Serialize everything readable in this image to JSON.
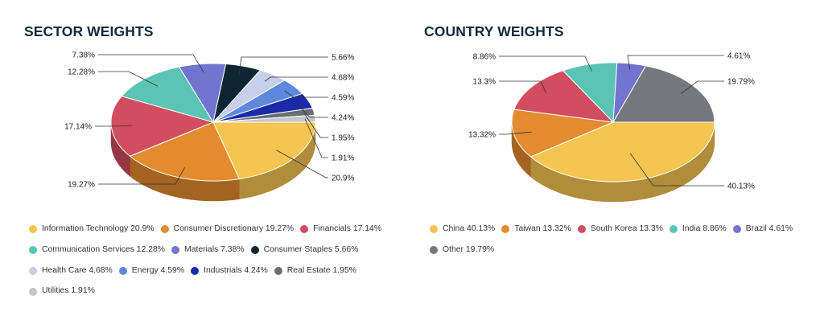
{
  "chart_data": [
    {
      "type": "pie",
      "title": "SECTOR WEIGHTS",
      "slices": [
        {
          "name": "Information Technology",
          "value": 20.9,
          "label": "20.9%",
          "legend": "Information Technology 20.9%",
          "color": "#f5c451"
        },
        {
          "name": "Consumer Discretionary",
          "value": 19.27,
          "label": "19.27%",
          "legend": "Consumer Discretionary 19.27%",
          "color": "#e38b2e"
        },
        {
          "name": "Financials",
          "value": 17.14,
          "label": "17.14%",
          "legend": "Financials 17.14%",
          "color": "#d24d5f"
        },
        {
          "name": "Communication Services",
          "value": 12.28,
          "label": "12.28%",
          "legend": "Communication Services 12.28%",
          "color": "#5cc4b4"
        },
        {
          "name": "Materials",
          "value": 7.38,
          "label": "7.38%",
          "legend": "Materials 7.38%",
          "color": "#7175cf"
        },
        {
          "name": "Consumer Staples",
          "value": 5.66,
          "label": "5.66%",
          "legend": "Consumer Staples 5.66%",
          "color": "#0c2733"
        },
        {
          "name": "Health Care",
          "value": 4.68,
          "label": "4.68%",
          "legend": "Health Care 4.68%",
          "color": "#c5cfe9"
        },
        {
          "name": "Energy",
          "value": 4.59,
          "label": "4.59%",
          "legend": "Energy 4.59%",
          "color": "#5d88dc"
        },
        {
          "name": "Industrials",
          "value": 4.24,
          "label": "4.24%",
          "legend": "Industrials 4.24%",
          "color": "#1a2aa8"
        },
        {
          "name": "Real Estate",
          "value": 1.95,
          "label": "1.95%",
          "legend": "Real Estate 1.95%",
          "color": "#6b6f74"
        },
        {
          "name": "Utilities",
          "value": 1.91,
          "label": "1.91%",
          "legend": "Utilities 1.91%",
          "color": "#c4c5c7"
        }
      ]
    },
    {
      "type": "pie",
      "title": "COUNTRY WEIGHTS",
      "slices": [
        {
          "name": "China",
          "value": 40.13,
          "label": "40.13%",
          "legend": "China 40.13%",
          "color": "#f5c451"
        },
        {
          "name": "Taiwan",
          "value": 13.32,
          "label": "13.32%",
          "legend": "Taiwan 13.32%",
          "color": "#e38b2e"
        },
        {
          "name": "South Korea",
          "value": 13.3,
          "label": "13.3%",
          "legend": "South Korea 13.3%",
          "color": "#d24d5f"
        },
        {
          "name": "India",
          "value": 8.86,
          "label": "8.86%",
          "legend": "India 8.86%",
          "color": "#5cc4b4"
        },
        {
          "name": "Brazil",
          "value": 4.61,
          "label": "4.61%",
          "legend": "Brazil 4.61%",
          "color": "#7175cf"
        },
        {
          "name": "Other",
          "value": 19.79,
          "label": "19.79%",
          "legend": "Other 19.79%",
          "color": "#75787c"
        }
      ]
    }
  ]
}
